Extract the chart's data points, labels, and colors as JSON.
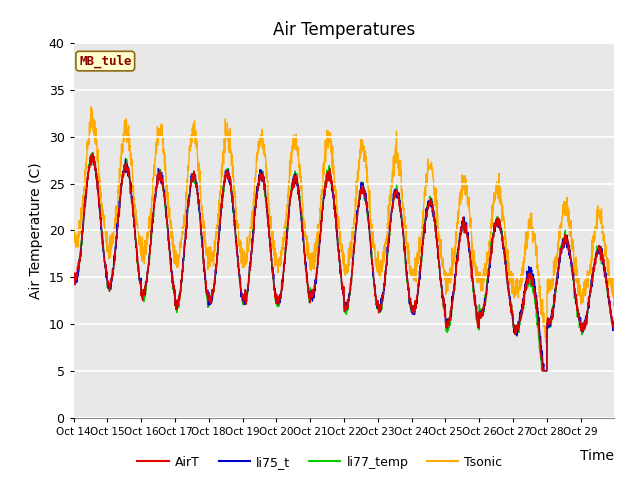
{
  "title": "Air Temperatures",
  "ylabel": "Air Temperature (C)",
  "xlabel": "Time",
  "ylim": [
    0,
    40
  ],
  "yticks": [
    0,
    5,
    10,
    15,
    20,
    25,
    30,
    35,
    40
  ],
  "xtick_labels": [
    "Oct 14",
    "Oct 15",
    "Oct 16",
    "Oct 17",
    "Oct 18",
    "Oct 19",
    "Oct 20",
    "Oct 21",
    "Oct 22",
    "Oct 23",
    "Oct 24",
    "Oct 25",
    "Oct 26",
    "Oct 27",
    "Oct 28",
    "Oct 29"
  ],
  "location_label": "MB_tule",
  "legend_entries": [
    "AirT",
    "li75_t",
    "li77_temp",
    "Tsonic"
  ],
  "line_colors": [
    "#dd0000",
    "#0000cc",
    "#00cc00",
    "#ffaa00"
  ],
  "plot_bg_color": "#e8e8e8",
  "title_fontsize": 12,
  "axis_fontsize": 10,
  "tick_fontsize": 9
}
